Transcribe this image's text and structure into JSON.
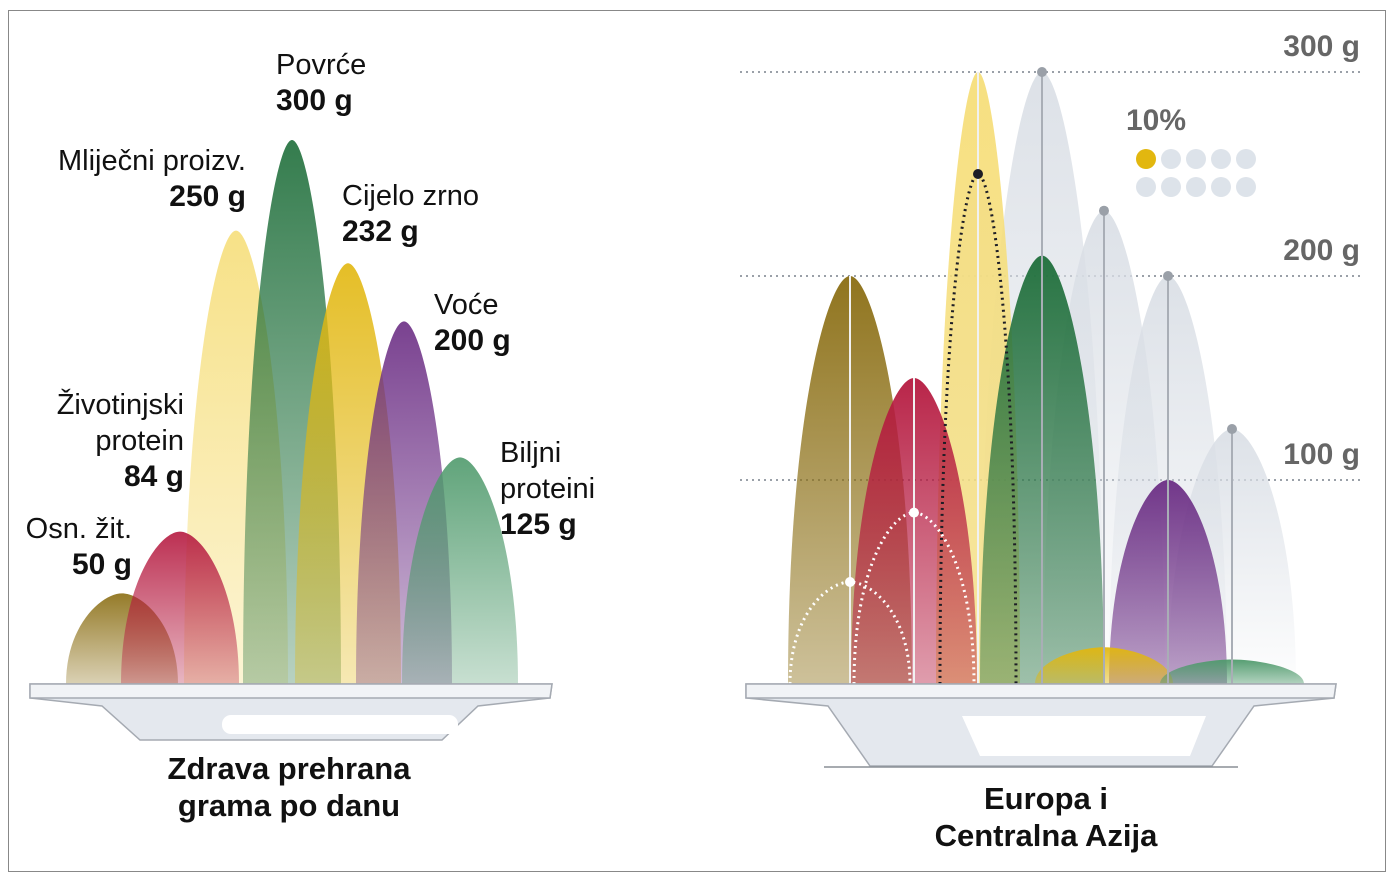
{
  "chart_data": [
    {
      "type": "area",
      "title": "Zdrava prehrana",
      "subtitle": "grama po danu",
      "unit": "g",
      "series": [
        {
          "name": "Osn. žit.",
          "value": 50,
          "color": "#8a6d12"
        },
        {
          "name": "Mliječni proizv.",
          "value": 250,
          "color": "#f6de7a"
        },
        {
          "name": "Životinjski protein",
          "value": 84,
          "color": "#b5193f"
        },
        {
          "name": "Povrće",
          "value": 300,
          "color": "#1e6e3a"
        },
        {
          "name": "Cijelo zrno",
          "value": 232,
          "color": "#e2b70f"
        },
        {
          "name": "Voće",
          "value": 200,
          "color": "#6b2d84"
        },
        {
          "name": "Biljni proteini",
          "value": 125,
          "color": "#4f9a6c"
        }
      ],
      "labels": [
        {
          "key": "osn",
          "name_lines": [
            "Osn. žit."
          ],
          "value": "50 g"
        },
        {
          "key": "zivotinjski",
          "name_lines": [
            "Životinjski",
            "protein"
          ],
          "value": "84 g"
        },
        {
          "key": "mlijecni",
          "name_lines": [
            "Mliječni proizv."
          ],
          "value": "250 g"
        },
        {
          "key": "povrce",
          "name_lines": [
            "Povrće"
          ],
          "value": "300 g"
        },
        {
          "key": "cijelo",
          "name_lines": [
            "Cijelo zrno"
          ],
          "value": "232 g"
        },
        {
          "key": "voce",
          "name_lines": [
            "Voće"
          ],
          "value": "200 g"
        },
        {
          "key": "biljni",
          "name_lines": [
            "Biljni",
            "proteini"
          ],
          "value": "125 g"
        }
      ]
    },
    {
      "type": "area",
      "title": "Europa i",
      "subtitle": "Centralna Azija",
      "unit": "g",
      "y_ticks": [
        {
          "value": 300,
          "label": "300 g"
        },
        {
          "value": 200,
          "label": "200 g"
        },
        {
          "value": 100,
          "label": "100 g"
        }
      ],
      "ylim": [
        0,
        300
      ],
      "series": [
        {
          "name": "Osn. žit.",
          "value": 200,
          "target": 50,
          "color": "#8a6d12"
        },
        {
          "name": "Mliječni proizv.",
          "value": 300,
          "target": 250,
          "color": "#f6de7a"
        },
        {
          "name": "Životinjski protein",
          "value": 150,
          "target": 84,
          "color": "#b5193f"
        },
        {
          "name": "Povrće",
          "value": 210,
          "target": 300,
          "color": "#1e6e3a"
        },
        {
          "name": "Cijelo zrno",
          "value": 18,
          "target": 232,
          "color": "#e2b70f"
        },
        {
          "name": "Voće",
          "value": 100,
          "target": 200,
          "color": "#6b2d84"
        },
        {
          "name": "Biljni proteini",
          "value": 12,
          "target": 125,
          "color": "#4f9a6c"
        }
      ],
      "legend": {
        "percent_label": "10%",
        "dots_total": 10,
        "dots_filled": 1,
        "filled_color": "#e2b70f",
        "empty_color": "#dde3ea"
      }
    }
  ]
}
